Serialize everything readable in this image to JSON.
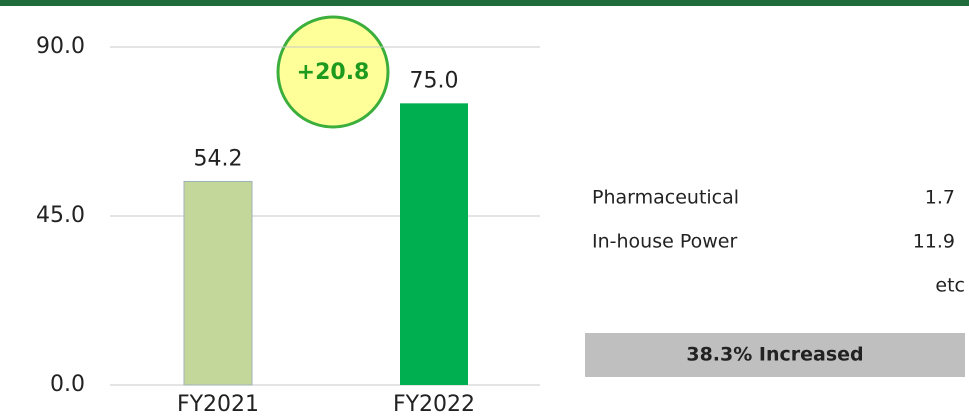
{
  "chart_data": {
    "type": "bar",
    "categories": [
      "FY2021",
      "FY2022"
    ],
    "values": [
      54.2,
      75.0
    ],
    "value_labels": [
      "54.2",
      "75.0"
    ],
    "colors": [
      "#c4d79b",
      "#00b050"
    ],
    "ylim": [
      0,
      90
    ],
    "yticks": [
      {
        "value": 0,
        "label": "0.0"
      },
      {
        "value": 45,
        "label": "45.0"
      },
      {
        "value": 90,
        "label": "90.0"
      }
    ],
    "grid": true,
    "annotation": "+20.8",
    "breakdown": [
      {
        "label": "Pharmaceutical",
        "value": "1.7"
      },
      {
        "label": "In-house Power",
        "value": "11.9"
      }
    ],
    "breakdown_note": "etc",
    "summary": "38.3% Increased"
  }
}
